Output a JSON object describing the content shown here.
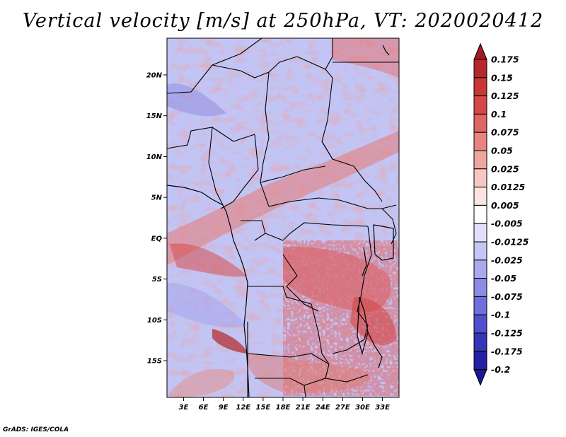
{
  "title": "Vertical velocity [m/s] at 250hPa, VT: 2020020412",
  "credit": "GrADS: IGES/COLA",
  "map": {
    "lat_labels": [
      {
        "lat": 20,
        "label": "20N"
      },
      {
        "lat": 15,
        "label": "15N"
      },
      {
        "lat": 10,
        "label": "10N"
      },
      {
        "lat": 5,
        "label": "5N"
      },
      {
        "lat": 0,
        "label": "EQ"
      },
      {
        "lat": -5,
        "label": "5S"
      },
      {
        "lat": -10,
        "label": "10S"
      },
      {
        "lat": -15,
        "label": "15S"
      }
    ],
    "lon_labels": [
      {
        "lon": 3,
        "label": "3E"
      },
      {
        "lon": 6,
        "label": "6E"
      },
      {
        "lon": 9,
        "label": "9E"
      },
      {
        "lon": 12,
        "label": "12E"
      },
      {
        "lon": 15,
        "label": "15E"
      },
      {
        "lon": 18,
        "label": "18E"
      },
      {
        "lon": 21,
        "label": "21E"
      },
      {
        "lon": 24,
        "label": "24E"
      },
      {
        "lon": 27,
        "label": "27E"
      },
      {
        "lon": 30,
        "label": "30E"
      },
      {
        "lon": 33,
        "label": "33E"
      }
    ]
  },
  "colorbar": {
    "levels": [
      "0.175",
      "0.15",
      "0.125",
      "0.1",
      "0.075",
      "0.05",
      "0.025",
      "0.0125",
      "0.005",
      "-0.005",
      "-0.0125",
      "-0.025",
      "-0.05",
      "-0.075",
      "-0.1",
      "-0.125",
      "-0.175",
      "-0.2"
    ],
    "colors": [
      "#a01c22",
      "#b7282c",
      "#c93636",
      "#d64848",
      "#df6664",
      "#e8847f",
      "#f0a6a0",
      "#f7c8c3",
      "#fce4e0",
      "#ffffff",
      "#e0e0fb",
      "#c6c6f5",
      "#a9a9ee",
      "#8c8ce6",
      "#6f6fdc",
      "#5050cc",
      "#3535b8",
      "#2222a2",
      "#1a1890"
    ]
  },
  "chart_data": {
    "type": "heatmap",
    "title": "Vertical velocity [m/s] at 250hPa, VT: 2020020412",
    "variable": "Vertical velocity",
    "units": "m/s",
    "level": "250hPa",
    "valid_time": "2020020412",
    "lon_range": [
      0.5,
      35.5
    ],
    "lat_range": [
      -19.5,
      24.5
    ],
    "x_ticks": [
      "3E",
      "6E",
      "9E",
      "12E",
      "15E",
      "18E",
      "21E",
      "24E",
      "27E",
      "30E",
      "33E"
    ],
    "y_ticks": [
      "20N",
      "15N",
      "10N",
      "5N",
      "EQ",
      "5S",
      "10S",
      "15S"
    ],
    "contour_levels": [
      -0.2,
      -0.175,
      -0.125,
      -0.1,
      -0.075,
      -0.05,
      -0.025,
      -0.0125,
      -0.005,
      0.005,
      0.0125,
      0.025,
      0.05,
      0.075,
      0.1,
      0.125,
      0.15,
      0.175
    ]
  }
}
